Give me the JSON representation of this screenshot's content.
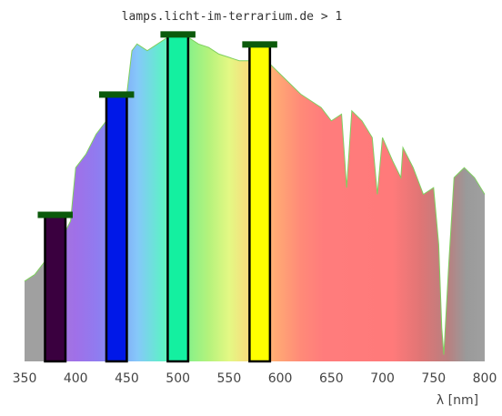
{
  "chart_data": {
    "type": "area",
    "title": "lamps.licht-im-terrarium.de > 1",
    "xlabel": "λ [nm]",
    "ylabel": "",
    "xlim": [
      350,
      800
    ],
    "ylim": [
      0,
      1
    ],
    "grid": false,
    "x_ticks": [
      "350",
      "400",
      "450",
      "500",
      "550",
      "600",
      "650",
      "700",
      "750",
      "800"
    ],
    "spectrum": {
      "name": "",
      "line_color": "#7fcf5f",
      "x": [
        350,
        360,
        370,
        378,
        385,
        395,
        400,
        410,
        420,
        430,
        440,
        450,
        455,
        460,
        470,
        480,
        490,
        500,
        510,
        520,
        530,
        540,
        550,
        560,
        570,
        580,
        590,
        600,
        610,
        620,
        630,
        640,
        650,
        660,
        665,
        670,
        680,
        690,
        695,
        700,
        710,
        718,
        720,
        730,
        740,
        750,
        755,
        758,
        760,
        765,
        770,
        780,
        790,
        800
      ],
      "y": [
        0.24,
        0.26,
        0.3,
        0.33,
        0.36,
        0.42,
        0.58,
        0.62,
        0.68,
        0.72,
        0.76,
        0.8,
        0.93,
        0.95,
        0.93,
        0.95,
        0.97,
        0.95,
        0.97,
        0.95,
        0.94,
        0.92,
        0.91,
        0.9,
        0.9,
        0.89,
        0.89,
        0.86,
        0.83,
        0.8,
        0.78,
        0.76,
        0.72,
        0.74,
        0.52,
        0.75,
        0.72,
        0.67,
        0.5,
        0.67,
        0.6,
        0.55,
        0.64,
        0.58,
        0.5,
        0.52,
        0.35,
        0.1,
        0.02,
        0.3,
        0.55,
        0.58,
        0.55,
        0.5
      ]
    },
    "series": [
      {
        "center_nm": 380,
        "value": 0.44,
        "fill": "#3a003f"
      },
      {
        "center_nm": 440,
        "value": 0.8,
        "fill": "#0018e8"
      },
      {
        "center_nm": 500,
        "value": 0.98,
        "fill": "#14f0a0"
      },
      {
        "center_nm": 580,
        "value": 0.95,
        "fill": "#ffff00"
      }
    ],
    "bar_width_nm": 20,
    "bar_cap_color": "#0b5a0b"
  }
}
